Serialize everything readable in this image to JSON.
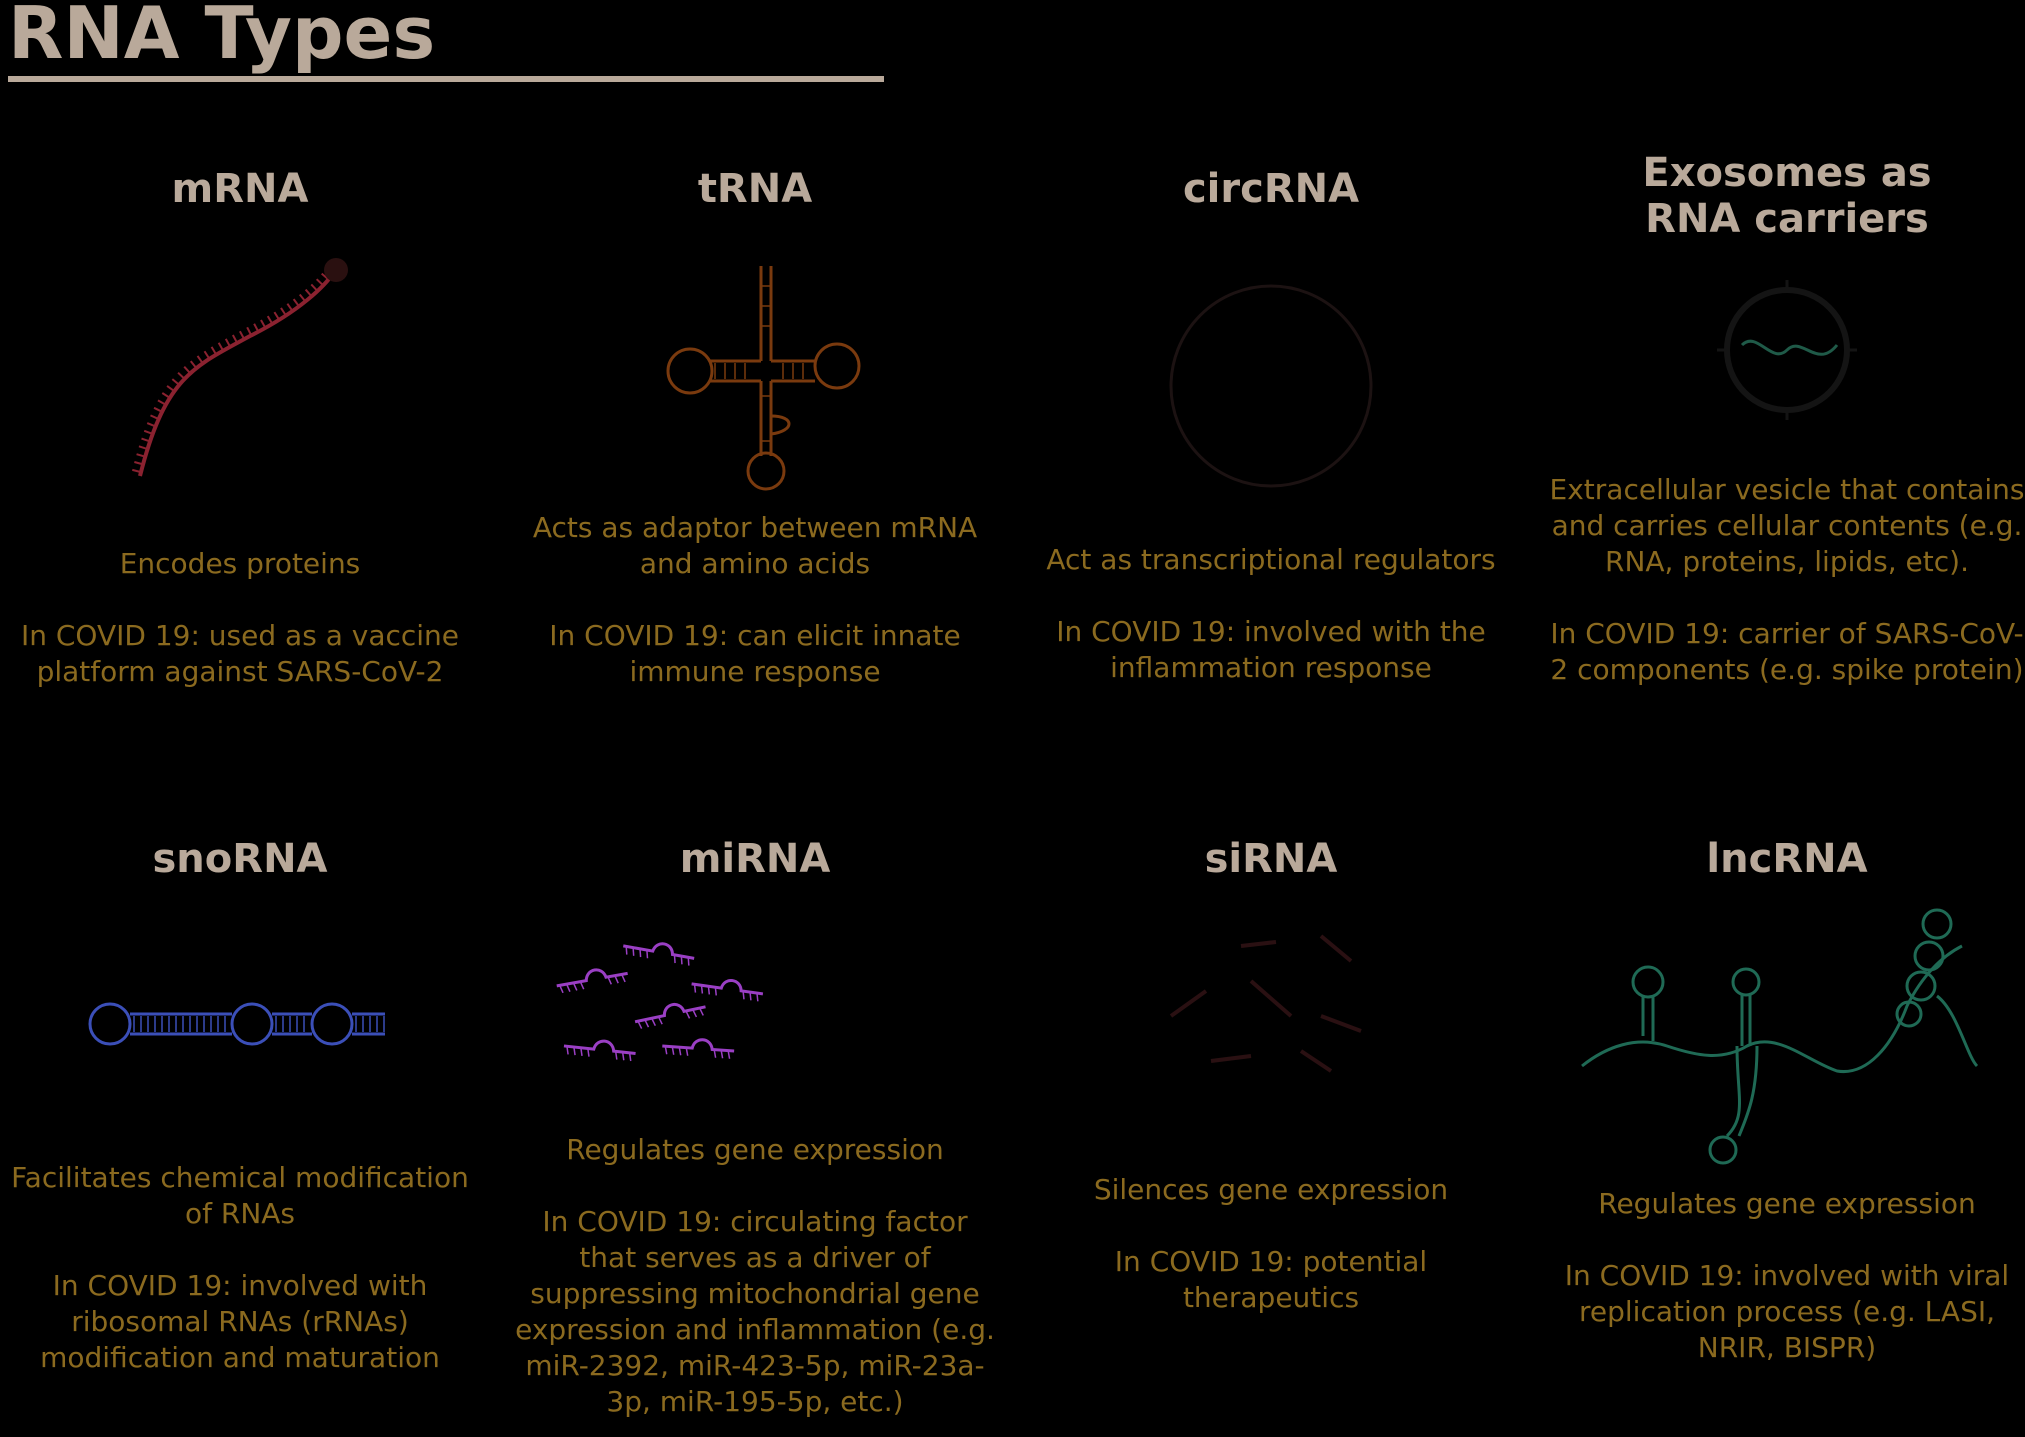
{
  "title": "RNA Types",
  "cards": [
    {
      "name": "mRNA",
      "desc": "Encodes proteins",
      "covid": "In COVID 19: used as a vaccine platform against SARS-CoV-2",
      "color": "#8b2230"
    },
    {
      "name": "tRNA",
      "desc": "Acts as adaptor between mRNA and amino acids",
      "covid": "In COVID 19: can elicit innate immune response",
      "color": "#7a3a0e"
    },
    {
      "name": "circRNA",
      "desc": "Act as transcriptional regulators",
      "covid": "In COVID 19: involved with the inflammation response",
      "color": "#2a1a1a"
    },
    {
      "name": "Exosomes as RNA carriers",
      "desc": "Extracellular vesicle that contains and carries cellular contents (e.g. RNA, proteins, lipids, etc).",
      "covid": "In COVID 19: carrier of SARS-CoV-2 components (e.g. spike protein)",
      "color": "#1f5a48"
    },
    {
      "name": "snoRNA",
      "desc": "Facilitates chemical modification of RNAs",
      "covid": "In COVID 19: involved with ribosomal RNAs (rRNAs) modification and maturation",
      "color": "#3b4fb8"
    },
    {
      "name": "miRNA",
      "desc": "Regulates gene expression",
      "covid": "In COVID 19: circulating factor that serves as a driver of suppressing mitochondrial gene expression and inflammation (e.g. miR-2392, miR-423-5p, miR-23a-3p, miR-195-5p, etc.)",
      "color": "#9a3fc4"
    },
    {
      "name": "siRNA",
      "desc": "Silences gene expression",
      "covid": "In COVID 19: potential therapeutics",
      "color": "#3a1416"
    },
    {
      "name": "lncRNA",
      "desc": "Regulates gene expression",
      "covid": "In COVID 19: involved with viral replication process (e.g. LASI, NRIR, BISPR)",
      "color": "#1f6a55"
    }
  ]
}
